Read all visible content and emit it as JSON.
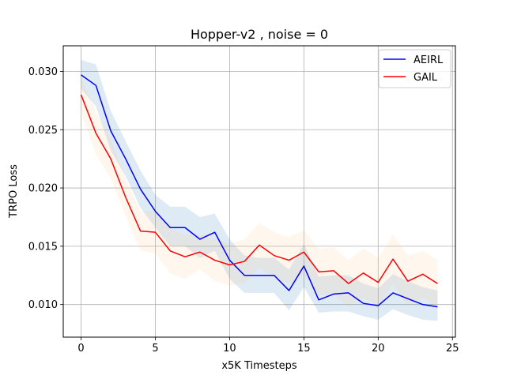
{
  "chart_data": {
    "type": "line",
    "title": "Hopper-v2 , noise = 0",
    "xlabel": "x5K Timesteps",
    "ylabel": "TRPO Loss",
    "xlim": [
      -1.2,
      25.2
    ],
    "ylim": [
      0.0072,
      0.0322
    ],
    "xticks": [
      0,
      5,
      10,
      15,
      20,
      25
    ],
    "yticks": [
      0.01,
      0.015,
      0.02,
      0.025,
      0.03
    ],
    "ytick_labels": [
      "0.010",
      "0.015",
      "0.020",
      "0.025",
      "0.030"
    ],
    "grid": true,
    "legend_position": "top-right",
    "x": [
      0,
      1,
      2,
      3,
      4,
      5,
      6,
      7,
      8,
      9,
      10,
      11,
      12,
      13,
      14,
      15,
      16,
      17,
      18,
      19,
      20,
      21,
      22,
      23,
      24
    ],
    "series": [
      {
        "name": "AEIRL",
        "color": "#0000ff",
        "band_color": "#1f77b4",
        "values": [
          0.0297,
          0.0288,
          0.0249,
          0.0225,
          0.0199,
          0.018,
          0.0166,
          0.0166,
          0.0156,
          0.0162,
          0.0138,
          0.0125,
          0.0125,
          0.0125,
          0.0112,
          0.0133,
          0.0104,
          0.0109,
          0.011,
          0.0101,
          0.0099,
          0.011,
          0.0105,
          0.01,
          0.0098
        ],
        "upper": [
          0.031,
          0.0306,
          0.0266,
          0.024,
          0.0215,
          0.0194,
          0.0184,
          0.0184,
          0.0175,
          0.0178,
          0.0156,
          0.0142,
          0.014,
          0.014,
          0.013,
          0.0152,
          0.0124,
          0.0125,
          0.0125,
          0.0118,
          0.0114,
          0.0126,
          0.012,
          0.0115,
          0.0112
        ],
        "lower": [
          0.0285,
          0.027,
          0.0232,
          0.021,
          0.0183,
          0.0166,
          0.015,
          0.015,
          0.014,
          0.0146,
          0.0122,
          0.011,
          0.011,
          0.011,
          0.0095,
          0.0115,
          0.0093,
          0.0094,
          0.0094,
          0.009,
          0.0087,
          0.0096,
          0.0091,
          0.0087,
          0.0086
        ]
      },
      {
        "name": "GAIL",
        "color": "#ff0000",
        "band_color": "#ffc58a",
        "values": [
          0.028,
          0.0247,
          0.0225,
          0.0192,
          0.0163,
          0.0162,
          0.0146,
          0.0141,
          0.0145,
          0.0138,
          0.0134,
          0.0137,
          0.0151,
          0.0142,
          0.0138,
          0.0145,
          0.0128,
          0.0129,
          0.0118,
          0.0127,
          0.0119,
          0.0139,
          0.012,
          0.0126,
          0.0118
        ],
        "upper": [
          0.0295,
          0.0265,
          0.0242,
          0.0208,
          0.018,
          0.018,
          0.0165,
          0.016,
          0.016,
          0.0156,
          0.0152,
          0.0156,
          0.017,
          0.0162,
          0.0158,
          0.0164,
          0.0148,
          0.0149,
          0.0138,
          0.0148,
          0.014,
          0.016,
          0.0142,
          0.0146,
          0.0138
        ],
        "lower": [
          0.0265,
          0.0229,
          0.0208,
          0.0176,
          0.0146,
          0.0144,
          0.0127,
          0.0122,
          0.013,
          0.012,
          0.0116,
          0.0118,
          0.0132,
          0.0122,
          0.0118,
          0.0126,
          0.0108,
          0.0109,
          0.0098,
          0.0106,
          0.0098,
          0.0118,
          0.0098,
          0.0106,
          0.0098
        ]
      }
    ]
  }
}
